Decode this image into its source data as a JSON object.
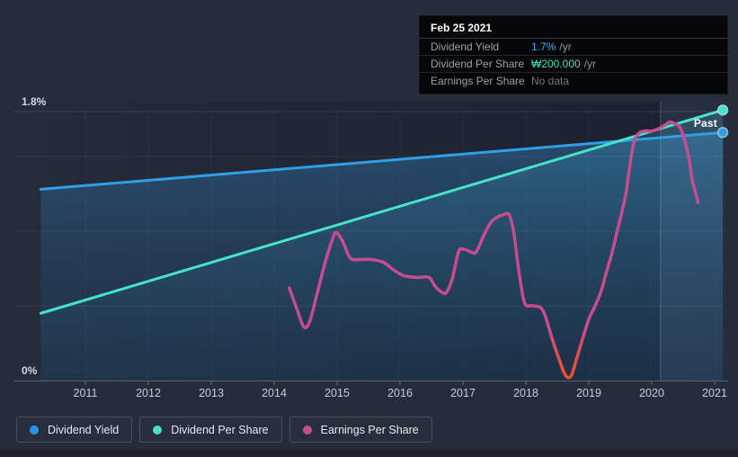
{
  "page": {
    "background": "#262c3a",
    "bottom_strip_color": "#1f242e"
  },
  "tooltip": {
    "title": "Feb 25 2021",
    "rows": [
      {
        "label": "Dividend Yield",
        "value": "1.7%",
        "suffix": "/yr",
        "value_color": "#4aa8ec"
      },
      {
        "label": "Dividend Per Share",
        "value": "₩200.000",
        "suffix": "/yr",
        "value_color": "#43dcc3"
      },
      {
        "label": "Earnings Per Share",
        "value": "No data",
        "suffix": "",
        "value_color": "#70777f"
      }
    ]
  },
  "legend": {
    "items": [
      {
        "label": "Dividend Yield",
        "color": "#2196f3"
      },
      {
        "label": "Dividend Per Share",
        "color": "#4be0c5"
      },
      {
        "label": "Earnings Per Share",
        "color": "#c2508f"
      }
    ]
  },
  "chart_data": {
    "type": "line",
    "title": "Dividend history (hover date Feb 25 2021: yield 1.7%/yr, DPS ₩200.000/yr, EPS no data)",
    "x_axis": {
      "ticks": [
        2011,
        2012,
        2013,
        2014,
        2015,
        2016,
        2017,
        2018,
        2019,
        2020,
        2021
      ],
      "min": 2010.29,
      "max": 2021.35
    },
    "y_axis": {
      "min": 0,
      "max": 1.8,
      "max_label": "1.8%",
      "zero_label": "0%",
      "gridline_values": [
        0.5,
        1.0,
        1.5
      ],
      "top_gridline": 1.8,
      "unit": "percent (left axis shown; DPS/EPS use hidden won scales)"
    },
    "annotations": {
      "past_label": "Past",
      "highlight_band": {
        "start": 2020.14,
        "end": 2021.16
      }
    },
    "series": [
      {
        "name": "Dividend Yield",
        "color": "#319ee6",
        "end_dot": true,
        "area_fill": true,
        "points": [
          [
            2010.29,
            1.28
          ],
          [
            2021.13,
            1.66
          ]
        ]
      },
      {
        "name": "Dividend Per Share",
        "color": "#46e2c9",
        "end_dot": true,
        "area_fill": true,
        "points": [
          [
            2010.29,
            0.45
          ],
          [
            2021.13,
            1.81
          ]
        ]
      },
      {
        "name": "Earnings Per Share",
        "color": "#c84b90",
        "negative_color": "#ef4e2b",
        "end_dot": false,
        "area_fill": false,
        "points": [
          [
            2014.24,
            0.62
          ],
          [
            2014.36,
            0.48
          ],
          [
            2014.47,
            0.36
          ],
          [
            2014.56,
            0.39
          ],
          [
            2014.67,
            0.56
          ],
          [
            2014.81,
            0.79
          ],
          [
            2014.93,
            0.95
          ],
          [
            2014.99,
            0.99
          ],
          [
            2015.09,
            0.93
          ],
          [
            2015.21,
            0.82
          ],
          [
            2015.36,
            0.81
          ],
          [
            2015.54,
            0.81
          ],
          [
            2015.74,
            0.79
          ],
          [
            2015.9,
            0.74
          ],
          [
            2016.07,
            0.7
          ],
          [
            2016.29,
            0.69
          ],
          [
            2016.46,
            0.69
          ],
          [
            2016.56,
            0.63
          ],
          [
            2016.67,
            0.59
          ],
          [
            2016.74,
            0.59
          ],
          [
            2016.83,
            0.68
          ],
          [
            2016.93,
            0.86
          ],
          [
            2017.01,
            0.88
          ],
          [
            2017.13,
            0.86
          ],
          [
            2017.21,
            0.86
          ],
          [
            2017.33,
            0.97
          ],
          [
            2017.43,
            1.05
          ],
          [
            2017.53,
            1.09
          ],
          [
            2017.64,
            1.11
          ],
          [
            2017.73,
            1.11
          ],
          [
            2017.8,
            1.01
          ],
          [
            2017.87,
            0.79
          ],
          [
            2017.93,
            0.62
          ],
          [
            2017.99,
            0.51
          ],
          [
            2018.1,
            0.5
          ],
          [
            2018.23,
            0.49
          ],
          [
            2018.31,
            0.43
          ],
          [
            2018.41,
            0.29
          ],
          [
            2018.53,
            0.14
          ],
          [
            2018.61,
            0.05
          ],
          [
            2018.67,
            0.02
          ],
          [
            2018.73,
            0.04
          ],
          [
            2018.81,
            0.15
          ],
          [
            2018.91,
            0.29
          ],
          [
            2019.0,
            0.41
          ],
          [
            2019.09,
            0.49
          ],
          [
            2019.19,
            0.59
          ],
          [
            2019.27,
            0.71
          ],
          [
            2019.36,
            0.84
          ],
          [
            2019.44,
            0.98
          ],
          [
            2019.51,
            1.1
          ],
          [
            2019.59,
            1.25
          ],
          [
            2019.64,
            1.4
          ],
          [
            2019.69,
            1.54
          ],
          [
            2019.74,
            1.62
          ],
          [
            2019.81,
            1.66
          ],
          [
            2019.9,
            1.67
          ],
          [
            2020.01,
            1.67
          ],
          [
            2020.13,
            1.69
          ],
          [
            2020.21,
            1.71
          ],
          [
            2020.29,
            1.73
          ],
          [
            2020.36,
            1.72
          ],
          [
            2020.44,
            1.7
          ],
          [
            2020.51,
            1.63
          ],
          [
            2020.59,
            1.49
          ],
          [
            2020.64,
            1.35
          ],
          [
            2020.7,
            1.25
          ],
          [
            2020.74,
            1.19
          ]
        ]
      }
    ]
  }
}
